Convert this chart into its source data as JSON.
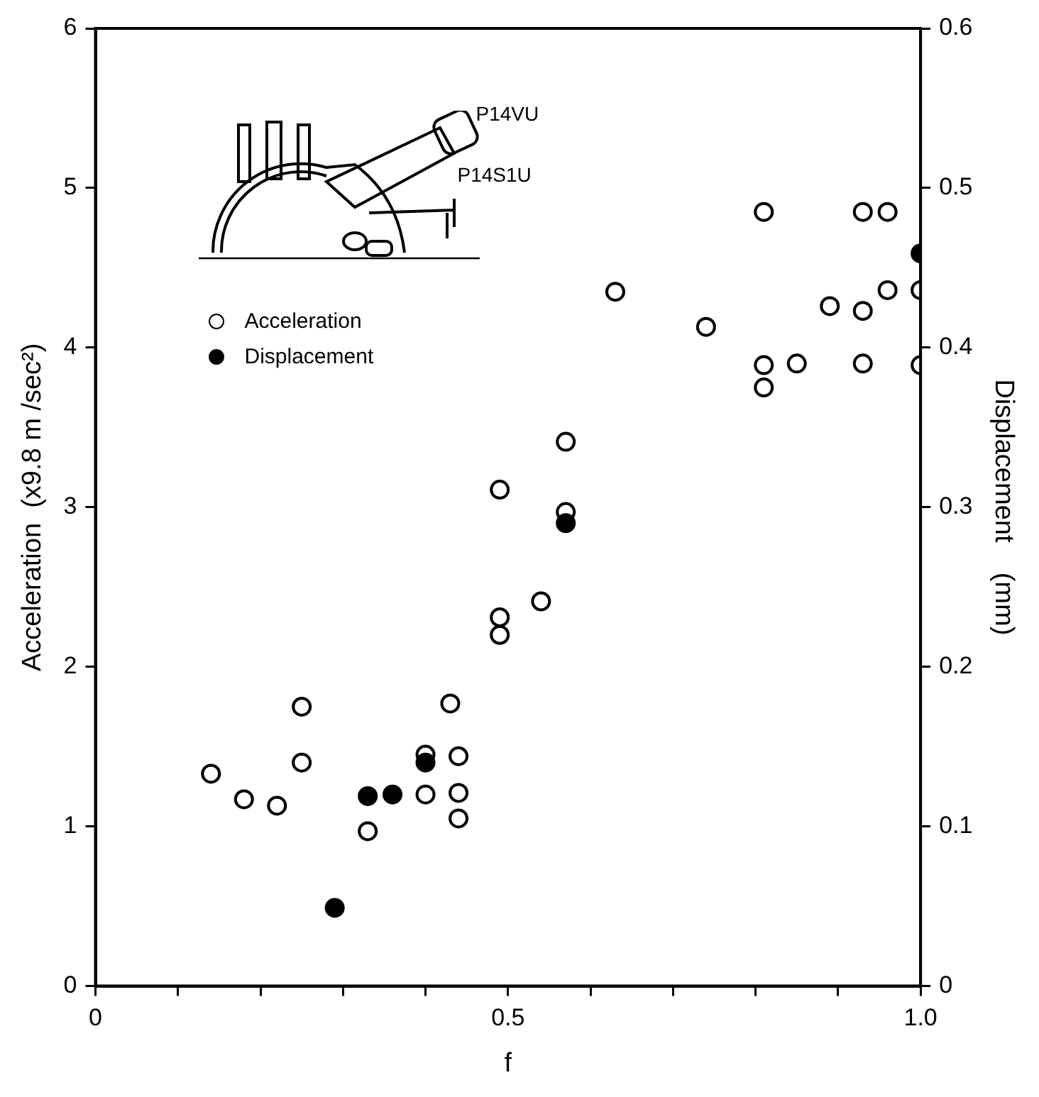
{
  "chart_data": {
    "type": "scatter",
    "xlabel": "f",
    "ylabel": "Acceleration  (x9.8 m /sec²)",
    "y2label": "Displacement    (mm)",
    "annotations": [
      "P14VU",
      "P14S1U"
    ],
    "xlim": [
      0,
      1
    ],
    "xticks": [
      0,
      {
        "value": 0.1,
        "label": null
      },
      {
        "value": 0.2,
        "label": null
      },
      {
        "value": 0.3,
        "label": null
      },
      {
        "value": 0.4,
        "label": null
      },
      0.5,
      {
        "value": 0.6,
        "label": null
      },
      {
        "value": 0.7,
        "label": null
      },
      {
        "value": 0.8,
        "label": null
      },
      {
        "value": 0.9,
        "label": null
      },
      {
        "value": 1,
        "label": "1.0"
      }
    ],
    "ylim": [
      0,
      6
    ],
    "yticks": [
      0,
      1,
      2,
      3,
      4,
      5,
      6
    ],
    "y2lim": [
      0,
      0.6
    ],
    "y2ticks": [
      0,
      0.1,
      0.2,
      0.3,
      0.4,
      0.5,
      0.6
    ],
    "grid": false,
    "legend": "top left",
    "marker": "circle",
    "series": [
      {
        "name": "Acceleration",
        "color": "#ffffff",
        "x": [
          0.14,
          0.18,
          0.22,
          0.25,
          0.25,
          0.33,
          0.4,
          0.4,
          0.43,
          0.44,
          0.44,
          0.44,
          0.49,
          0.49,
          0.49,
          0.54,
          0.57,
          0.57,
          0.63,
          0.74,
          0.81,
          0.81,
          0.81,
          0.85,
          0.89,
          0.93,
          0.93,
          0.93,
          0.96,
          0.96,
          1,
          1
        ],
        "values": [
          1.33,
          1.17,
          1.13,
          1.75,
          1.4,
          0.97,
          1.45,
          1.2,
          1.77,
          1.44,
          1.21,
          1.05,
          2.31,
          2.2,
          3.11,
          2.41,
          3.41,
          2.97,
          4.35,
          4.13,
          4.85,
          3.89,
          3.75,
          3.9,
          4.26,
          4.85,
          4.23,
          3.9,
          4.85,
          4.36,
          4.36,
          3.89
        ]
      },
      {
        "name": "Displacement",
        "color": "#000000",
        "axis": "y2",
        "x": [
          0.29,
          0.33,
          0.36,
          0.4,
          0.57,
          1
        ],
        "values": [
          0.049,
          0.119,
          0.12,
          0.14,
          0.29,
          0.459
        ]
      }
    ]
  }
}
